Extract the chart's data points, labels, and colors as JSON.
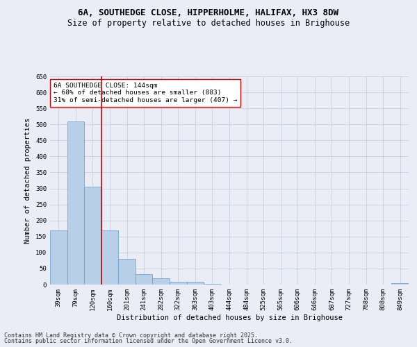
{
  "title_line1": "6A, SOUTHEDGE CLOSE, HIPPERHOLME, HALIFAX, HX3 8DW",
  "title_line2": "Size of property relative to detached houses in Brighouse",
  "xlabel": "Distribution of detached houses by size in Brighouse",
  "ylabel": "Number of detached properties",
  "categories": [
    "39sqm",
    "79sqm",
    "120sqm",
    "160sqm",
    "201sqm",
    "241sqm",
    "282sqm",
    "322sqm",
    "363sqm",
    "403sqm",
    "444sqm",
    "484sqm",
    "525sqm",
    "565sqm",
    "606sqm",
    "646sqm",
    "687sqm",
    "727sqm",
    "768sqm",
    "808sqm",
    "849sqm"
  ],
  "values": [
    170,
    510,
    305,
    170,
    80,
    33,
    20,
    8,
    8,
    3,
    0,
    0,
    0,
    0,
    0,
    0,
    0,
    0,
    0,
    0,
    5
  ],
  "bar_color": "#b8cfe8",
  "bar_edge_color": "#6699cc",
  "vline_color": "#cc0000",
  "annotation_text": "6A SOUTHEDGE CLOSE: 144sqm\n← 68% of detached houses are smaller (883)\n31% of semi-detached houses are larger (407) →",
  "annotation_box_facecolor": "#ffffff",
  "annotation_box_edgecolor": "#cc0000",
  "ylim": [
    0,
    650
  ],
  "yticks": [
    0,
    50,
    100,
    150,
    200,
    250,
    300,
    350,
    400,
    450,
    500,
    550,
    600,
    650
  ],
  "grid_color": "#c8d0e0",
  "background_color": "#eaedf5",
  "footer_line1": "Contains HM Land Registry data © Crown copyright and database right 2025.",
  "footer_line2": "Contains public sector information licensed under the Open Government Licence v3.0.",
  "title_fontsize": 9,
  "subtitle_fontsize": 8.5,
  "axis_label_fontsize": 7.5,
  "tick_fontsize": 6.5,
  "annotation_fontsize": 6.8,
  "footer_fontsize": 6
}
